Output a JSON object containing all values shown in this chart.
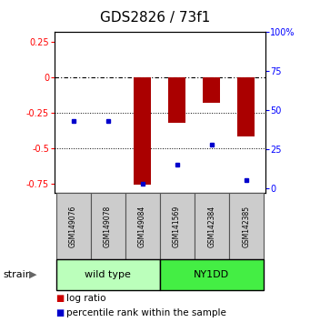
{
  "title": "GDS2826 / 73f1",
  "samples": [
    "GSM149076",
    "GSM149078",
    "GSM149084",
    "GSM141569",
    "GSM142384",
    "GSM142385"
  ],
  "groups": [
    {
      "name": "wild type",
      "indices": [
        0,
        1,
        2
      ],
      "color": "#bbffbb"
    },
    {
      "name": "NY1DD",
      "indices": [
        3,
        4,
        5
      ],
      "color": "#44ee44"
    }
  ],
  "log_ratio": [
    0.0,
    0.0,
    -0.76,
    -0.32,
    -0.18,
    -0.42
  ],
  "percentile_rank": [
    43,
    43,
    3,
    15,
    28,
    5
  ],
  "ylim_left": [
    -0.82,
    0.32
  ],
  "ylim_right": [
    -3.125,
    100
  ],
  "left_ticks": [
    0.25,
    0.0,
    -0.25,
    -0.5,
    -0.75
  ],
  "left_tick_labels": [
    "0.25",
    "0",
    "-0.25",
    "-0.5",
    "-0.75"
  ],
  "right_ticks": [
    100,
    75,
    50,
    25,
    0
  ],
  "right_tick_labels": [
    "100%",
    "75",
    "50",
    "25",
    "0"
  ],
  "hline_dashdot": 0.0,
  "hlines_dotted": [
    -0.25,
    -0.5
  ],
  "bar_color": "#aa0000",
  "dot_color": "#0000cc",
  "bar_width": 0.5,
  "title_fontsize": 11,
  "tick_fontsize": 7,
  "sample_fontsize": 5.5,
  "group_fontsize": 8,
  "legend_fontsize": 7.5,
  "strain_fontsize": 8
}
